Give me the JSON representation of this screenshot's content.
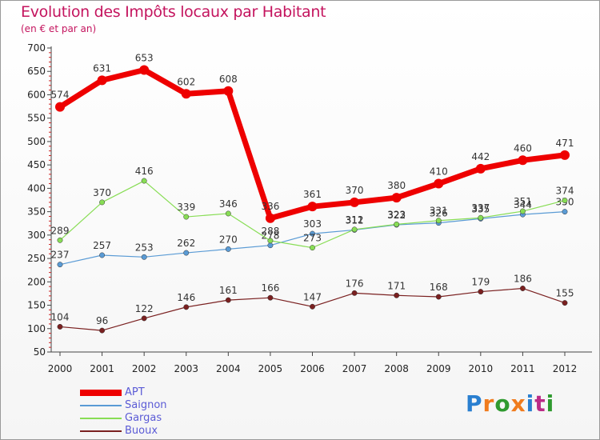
{
  "chart_data": {
    "type": "line",
    "title": "Evolution des Impôts locaux par Habitant",
    "subtitle": "(en € et par an)",
    "xlabel": "",
    "ylabel": "",
    "categories": [
      "2000",
      "2001",
      "2002",
      "2003",
      "2004",
      "2005",
      "2006",
      "2007",
      "2008",
      "2009",
      "2010",
      "2011",
      "2012"
    ],
    "ylim": [
      50,
      700
    ],
    "yticks": [
      50,
      100,
      150,
      200,
      250,
      300,
      350,
      400,
      450,
      500,
      550,
      600,
      650,
      700
    ],
    "grid": false,
    "legend": "bottom-left",
    "series": [
      {
        "name": "APT",
        "color": "#ee0000",
        "values": [
          574,
          631,
          653,
          602,
          608,
          336,
          361,
          370,
          380,
          410,
          442,
          460,
          471
        ]
      },
      {
        "name": "Saignon",
        "color": "#5a9bd5",
        "values": [
          237,
          257,
          253,
          262,
          270,
          278,
          303,
          311,
          322,
          326,
          335,
          344,
          350
        ]
      },
      {
        "name": "Gargas",
        "color": "#88dd55",
        "values": [
          289,
          370,
          416,
          339,
          346,
          288,
          273,
          312,
          323,
          331,
          337,
          351,
          374
        ]
      },
      {
        "name": "Buoux",
        "color": "#7a2020",
        "values": [
          104,
          96,
          122,
          146,
          161,
          166,
          147,
          176,
          171,
          168,
          179,
          186,
          155
        ]
      }
    ]
  },
  "legend_label_color": "#5b5bd6",
  "logo": {
    "letters": [
      "P",
      "r",
      "o",
      "x",
      "i",
      "t",
      "i"
    ],
    "colors": [
      "#2a7fd0",
      "#f07c1e",
      "#2f9a2f",
      "#f07c1e",
      "#2a7fd0",
      "#bb2b87",
      "#2f9a2f"
    ]
  }
}
